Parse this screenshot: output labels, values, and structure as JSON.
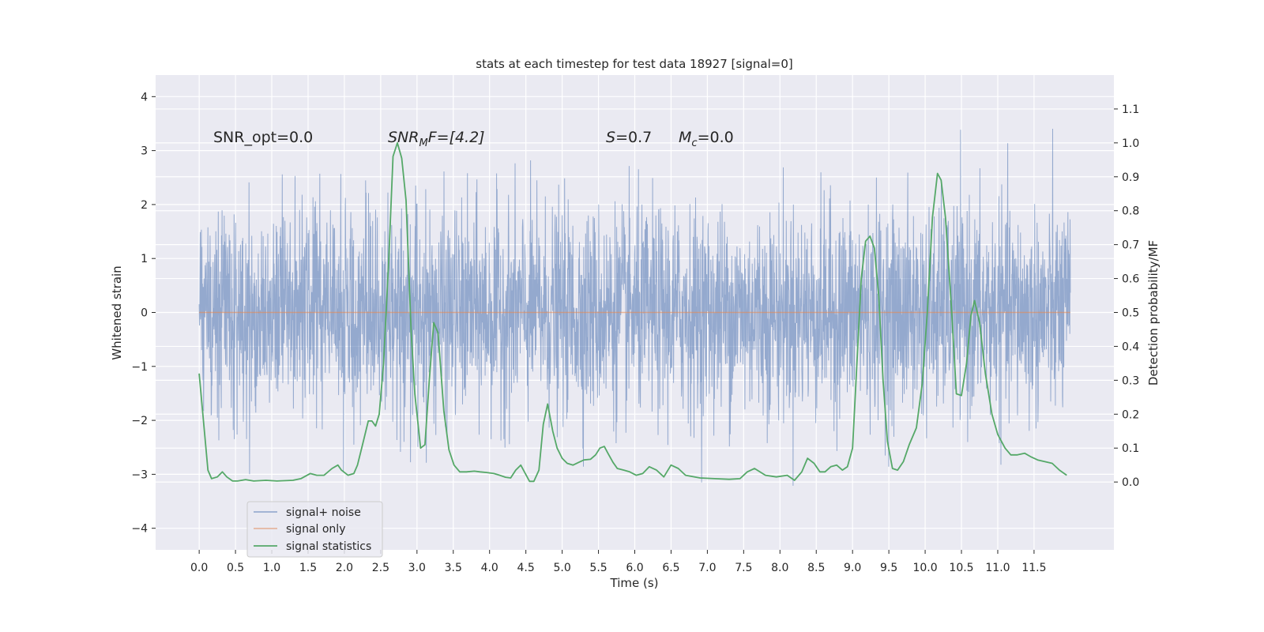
{
  "chart_data": {
    "type": "line",
    "title": "stats at each timestep for test data 18927 [signal=0]",
    "xlabel": "Time (s)",
    "ylabel": "Whitened strain",
    "ylabel_right": "Detection probability/MF",
    "xlim": [
      -0.6,
      12.6
    ],
    "ylim": [
      -4.4,
      4.4
    ],
    "ylim_right": [
      -0.2,
      1.2
    ],
    "grid": true,
    "x_ticks": [
      "0.0",
      "0.5",
      "1.0",
      "1.5",
      "2.0",
      "2.5",
      "3.0",
      "3.5",
      "4.0",
      "4.5",
      "5.0",
      "5.5",
      "6.0",
      "6.5",
      "7.0",
      "7.5",
      "8.0",
      "8.5",
      "9.0",
      "9.5",
      "10.0",
      "10.5",
      "11.0",
      "11.5"
    ],
    "y_ticks": [
      "4",
      "3",
      "2",
      "1",
      "0",
      "−1",
      "−2",
      "−3",
      "−4"
    ],
    "y_ticks_right": [
      "1.1",
      "1.0",
      "0.9",
      "0.8",
      "0.7",
      "0.6",
      "0.5",
      "0.4",
      "0.3",
      "0.2",
      "0.1",
      "0.0"
    ],
    "annotations": [
      {
        "text": "SNR_opt=0.0",
        "x": 0.2,
        "y": 3.2
      },
      {
        "text_main": "SNR",
        "text_sub": "M",
        "text_tail": "F=[4.2]",
        "x": 2.62,
        "y": 3.2
      },
      {
        "text_main": "S",
        "text_tail": "=0.7",
        "x": 5.6,
        "y": 3.2
      },
      {
        "text_main": "M",
        "text_sub": "c",
        "text_tail": "=0.0",
        "x": 6.6,
        "y": 3.2
      }
    ],
    "legend": {
      "placement": "lower-left",
      "entries": [
        "signal+ noise",
        "signal only",
        "signal statistics"
      ]
    },
    "series": [
      {
        "name": "signal+ noise",
        "color": "#4c72b0",
        "axis": "left",
        "description_range": [
          -3.8,
          4.1
        ],
        "duration": 12.0
      },
      {
        "name": "signal only",
        "color": "#dd8452",
        "axis": "left",
        "x": [
          0,
          12
        ],
        "y": [
          0,
          0
        ]
      },
      {
        "name": "signal statistics",
        "color": "#55a868",
        "axis": "right",
        "x": [
          0,
          0.12,
          0.17,
          0.25,
          0.32,
          0.38,
          0.46,
          0.53,
          0.64,
          0.75,
          0.92,
          1.07,
          1.29,
          1.4,
          1.53,
          1.62,
          1.72,
          1.83,
          1.91,
          1.96,
          2.05,
          2.13,
          2.18,
          2.25,
          2.33,
          2.38,
          2.43,
          2.48,
          2.54,
          2.61,
          2.67,
          2.73,
          2.79,
          2.85,
          2.92,
          2.97,
          3.05,
          3.11,
          3.17,
          3.23,
          3.29,
          3.37,
          3.44,
          3.51,
          3.59,
          3.68,
          3.79,
          3.87,
          3.96,
          4.06,
          4.14,
          4.22,
          4.29,
          4.36,
          4.43,
          4.48,
          4.55,
          4.61,
          4.68,
          4.74,
          4.8,
          4.87,
          4.93,
          5.0,
          5.07,
          5.15,
          5.23,
          5.3,
          5.39,
          5.46,
          5.52,
          5.58,
          5.63,
          5.7,
          5.76,
          5.85,
          5.93,
          6.02,
          6.11,
          6.2,
          6.3,
          6.4,
          6.5,
          6.6,
          6.7,
          6.9,
          7.1,
          7.3,
          7.45,
          7.55,
          7.65,
          7.8,
          7.95,
          8.1,
          8.2,
          8.3,
          8.38,
          8.47,
          8.55,
          8.62,
          8.7,
          8.78,
          8.86,
          8.93,
          9.0,
          9.06,
          9.12,
          9.18,
          9.24,
          9.3,
          9.36,
          9.42,
          9.48,
          9.55,
          9.62,
          9.7,
          9.78,
          9.88,
          9.96,
          10.03,
          10.1,
          10.17,
          10.22,
          10.28,
          10.36,
          10.43,
          10.5,
          10.57,
          10.63,
          10.68,
          10.75,
          10.83,
          10.92,
          11.0,
          11.1,
          11.18,
          11.27,
          11.37,
          11.45,
          11.55,
          11.65,
          11.75,
          11.85,
          11.95
        ],
        "y": [
          0.32,
          0.035,
          0.01,
          0.015,
          0.03,
          0.015,
          0.003,
          0.003,
          0.007,
          0.003,
          0.005,
          0.003,
          0.005,
          0.01,
          0.025,
          0.02,
          0.02,
          0.04,
          0.05,
          0.035,
          0.02,
          0.025,
          0.05,
          0.11,
          0.18,
          0.18,
          0.165,
          0.2,
          0.35,
          0.65,
          0.96,
          1.0,
          0.955,
          0.83,
          0.44,
          0.26,
          0.1,
          0.11,
          0.3,
          0.47,
          0.44,
          0.21,
          0.095,
          0.05,
          0.03,
          0.03,
          0.032,
          0.03,
          0.028,
          0.025,
          0.02,
          0.014,
          0.012,
          0.035,
          0.05,
          0.03,
          0.002,
          0.002,
          0.035,
          0.17,
          0.23,
          0.15,
          0.1,
          0.07,
          0.055,
          0.05,
          0.058,
          0.065,
          0.067,
          0.08,
          0.1,
          0.105,
          0.085,
          0.058,
          0.04,
          0.035,
          0.03,
          0.02,
          0.025,
          0.045,
          0.035,
          0.015,
          0.05,
          0.04,
          0.02,
          0.012,
          0.01,
          0.008,
          0.01,
          0.03,
          0.04,
          0.02,
          0.015,
          0.02,
          0.005,
          0.03,
          0.07,
          0.055,
          0.03,
          0.03,
          0.045,
          0.05,
          0.035,
          0.045,
          0.1,
          0.35,
          0.6,
          0.71,
          0.725,
          0.69,
          0.55,
          0.3,
          0.12,
          0.04,
          0.035,
          0.06,
          0.11,
          0.16,
          0.29,
          0.5,
          0.78,
          0.91,
          0.89,
          0.78,
          0.52,
          0.26,
          0.255,
          0.35,
          0.49,
          0.535,
          0.47,
          0.32,
          0.2,
          0.14,
          0.1,
          0.08,
          0.08,
          0.085,
          0.075,
          0.065,
          0.06,
          0.055,
          0.035,
          0.02
        ]
      }
    ]
  }
}
